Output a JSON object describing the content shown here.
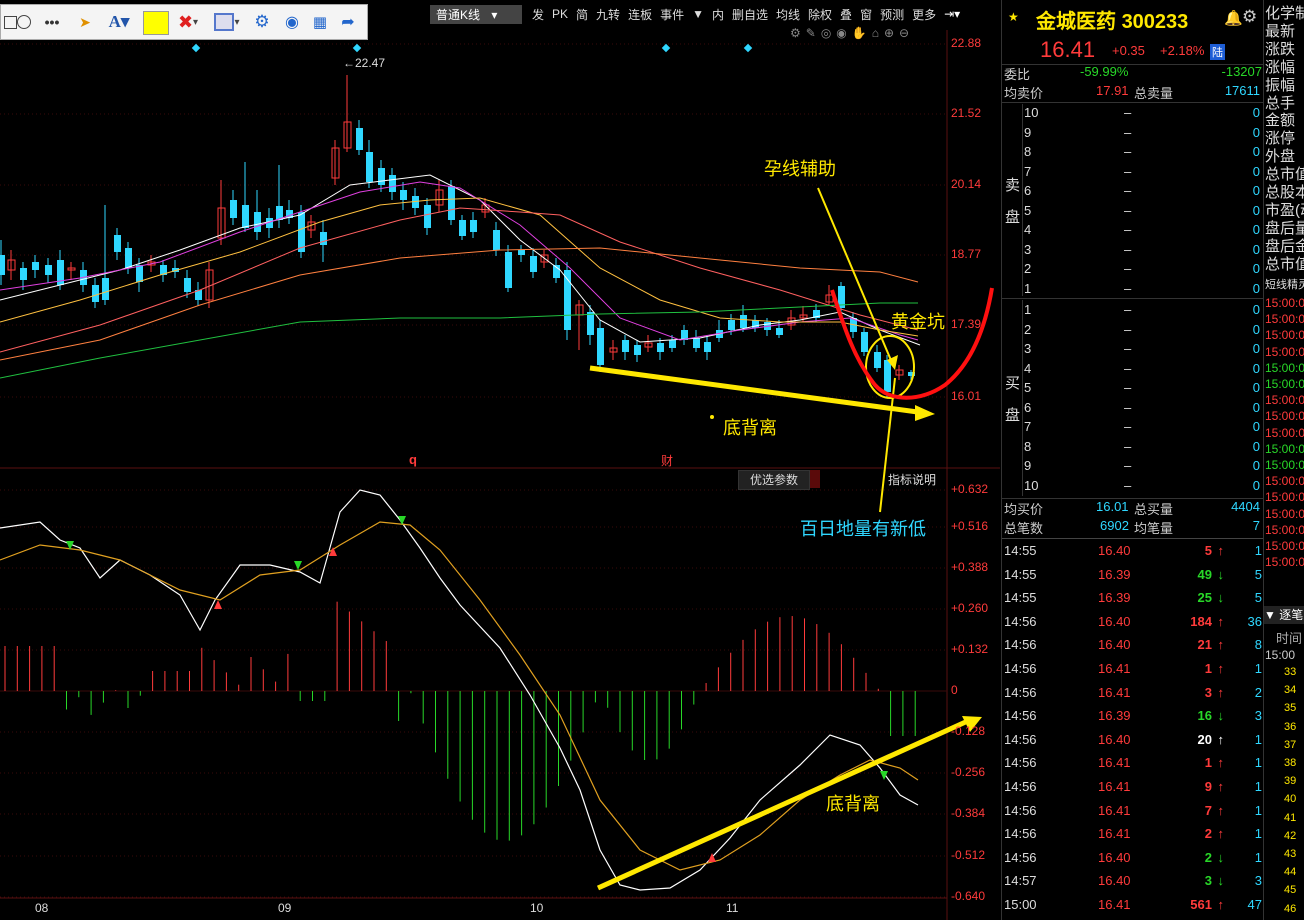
{
  "toolbar": {
    "tools": [
      "rect-icon",
      "circle-icon",
      "more-icon",
      "pointer-icon",
      "text-icon",
      "color-swatch",
      "delete-icon",
      "select-icon",
      "gear-icon",
      "eye-icon",
      "grid-icon",
      "share-icon"
    ],
    "swatch_color": "#ffff00"
  },
  "topmenu": {
    "kline_type": "普通K线",
    "items": [
      "发",
      "PK",
      "简",
      "九转",
      "连板",
      "事件",
      "内",
      "删自选",
      "均线",
      "除权",
      "叠",
      "窗",
      "预测",
      "更多"
    ]
  },
  "price_axis": [
    "22.88",
    "21.52",
    "20.14",
    "18.77",
    "17.39",
    "16.01"
  ],
  "indicator_axis": [
    "+0.632",
    "+0.516",
    "+0.388",
    "+0.260",
    "+0.132",
    "0",
    "-0.128",
    "-0.256",
    "-0.384",
    "-0.512",
    "-0.640"
  ],
  "x_axis": [
    "08",
    "09",
    "10",
    "11"
  ],
  "high_label": "22.47",
  "markers": {
    "q": "q",
    "cai": "财"
  },
  "indicator_buttons": {
    "params": "优选参数",
    "help": "指标说明"
  },
  "annotations": {
    "yunxian": "孕线辅助",
    "huangjinkeng": "黄金坑",
    "dibeili_top": "底背离",
    "bairi": "百日地量有新低",
    "dibeili_bottom": "底背离"
  },
  "stock": {
    "name": "金城医药",
    "code": "300233",
    "price": "16.41",
    "change": "+0.35",
    "change_pct": "+2.18%",
    "exchange_badge": "陆",
    "weibi_label": "委比",
    "weibi_val": "-59.99%",
    "weicha_val": "-13207",
    "avg_sell_label": "均卖价",
    "avg_sell_val": "17.91",
    "total_sell_label": "总卖量",
    "total_sell_val": "17611",
    "sell_side_label": "卖盘",
    "buy_side_label": "买盘",
    "avg_buy_label": "均买价",
    "avg_buy_val": "16.01",
    "total_buy_label": "总买量",
    "total_buy_val": "4404",
    "total_deals_label": "总笔数",
    "total_deals_val": "6902",
    "avg_deal_label": "均笔量",
    "avg_deal_val": "7"
  },
  "sell_levels": [
    "10",
    "9",
    "8",
    "7",
    "6",
    "5",
    "4",
    "3",
    "2",
    "1"
  ],
  "buy_levels": [
    "1",
    "2",
    "3",
    "4",
    "5",
    "6",
    "7",
    "8",
    "9",
    "10"
  ],
  "level_price": "–",
  "level_vol": "0",
  "ticks": [
    {
      "time": "14:55",
      "price": "16.40",
      "vol": "5",
      "dir": "up",
      "n": "1"
    },
    {
      "time": "14:55",
      "price": "16.39",
      "vol": "49",
      "dir": "down",
      "n": "5"
    },
    {
      "time": "14:55",
      "price": "16.39",
      "vol": "25",
      "dir": "down",
      "n": "5"
    },
    {
      "time": "14:56",
      "price": "16.40",
      "vol": "184",
      "dir": "up",
      "n": "36"
    },
    {
      "time": "14:56",
      "price": "16.40",
      "vol": "21",
      "dir": "up",
      "n": "8"
    },
    {
      "time": "14:56",
      "price": "16.41",
      "vol": "1",
      "dir": "up",
      "n": "1"
    },
    {
      "time": "14:56",
      "price": "16.41",
      "vol": "3",
      "dir": "up",
      "n": "2"
    },
    {
      "time": "14:56",
      "price": "16.39",
      "vol": "16",
      "dir": "down",
      "n": "3"
    },
    {
      "time": "14:56",
      "price": "16.40",
      "vol": "20",
      "dir": "white",
      "n": "1"
    },
    {
      "time": "14:56",
      "price": "16.41",
      "vol": "1",
      "dir": "up",
      "n": "1"
    },
    {
      "time": "14:56",
      "price": "16.41",
      "vol": "9",
      "dir": "up",
      "n": "1"
    },
    {
      "time": "14:56",
      "price": "16.41",
      "vol": "7",
      "dir": "up",
      "n": "1"
    },
    {
      "time": "14:56",
      "price": "16.41",
      "vol": "2",
      "dir": "up",
      "n": "1"
    },
    {
      "time": "14:56",
      "price": "16.40",
      "vol": "2",
      "dir": "down",
      "n": "1"
    },
    {
      "time": "14:57",
      "price": "16.40",
      "vol": "3",
      "dir": "down",
      "n": "3"
    },
    {
      "time": "15:00",
      "price": "16.41",
      "vol": "561",
      "dir": "up",
      "n": "47"
    }
  ],
  "far_right": {
    "labels": [
      "化学制",
      "最新",
      "涨跌",
      "涨幅",
      "振幅",
      "总手",
      "金额",
      "涨停",
      "外盘",
      "总市值",
      "总股本",
      "市盈(动",
      "盘后量",
      "盘后金",
      "总市值",
      "短线精灵"
    ],
    "times": [
      "15:00:0",
      "15:00:0",
      "15:00:0",
      "15:00:0",
      "15:00:0",
      "15:00:0",
      "15:00:0",
      "15:00:0",
      "15:00:0",
      "15:00:0",
      "15:00:0",
      "15:00:0",
      "15:00:0",
      "15:00:0",
      "15:00:0",
      "15:00:0",
      "15:00:0"
    ],
    "tab_label": "逐笔",
    "time_header": "时间",
    "time_first": "15:00",
    "nums": [
      "33",
      "34",
      "35",
      "36",
      "37",
      "38",
      "39",
      "40",
      "41",
      "42",
      "43",
      "44",
      "45",
      "46"
    ]
  },
  "colors": {
    "up": "#ff3b3b",
    "down": "#28d728",
    "axis_red": "#ff3b3b",
    "yellow": "#ffe800",
    "cyan": "#2fd7ff"
  }
}
